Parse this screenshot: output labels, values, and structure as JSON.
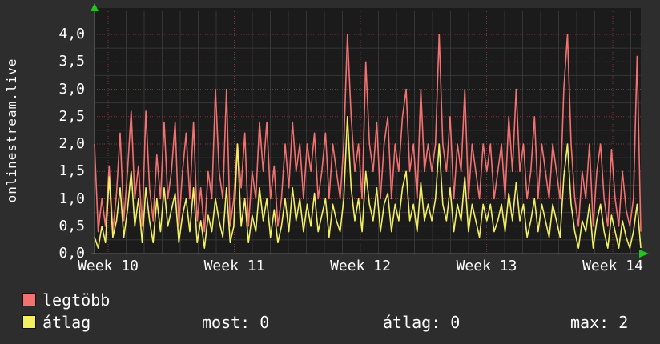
{
  "panel": {
    "bg": "#2d2d2d",
    "plot_bg": "#1b1b1b",
    "grid_major_color": "#7a3a3a",
    "grid_minor_color": "#363636",
    "axis_color": "#6a6a6a",
    "arrow_color": "#21c421",
    "text_color": "#ffffff"
  },
  "chart_data": {
    "type": "line",
    "title": "",
    "ylabel": "onlinestream.live",
    "xlabel": "",
    "ylim": [
      0,
      4.2
    ],
    "grid": true,
    "legend_position": "bottom-left",
    "y_ticks": [
      {
        "v": 0.0,
        "label": "0,0"
      },
      {
        "v": 0.5,
        "label": "0,5"
      },
      {
        "v": 1.0,
        "label": "1,0"
      },
      {
        "v": 1.5,
        "label": "1,5"
      },
      {
        "v": 2.0,
        "label": "2,0"
      },
      {
        "v": 2.5,
        "label": "2,5"
      },
      {
        "v": 3.0,
        "label": "3,0"
      },
      {
        "v": 3.5,
        "label": "3,5"
      },
      {
        "v": 4.0,
        "label": "4,0"
      }
    ],
    "x_tick_labels": [
      "Week 10",
      "Week 11",
      "Week 12",
      "Week 13",
      "Week 14"
    ],
    "series": [
      {
        "name": "legtöbb",
        "color": "#f47171",
        "values": [
          2.0,
          0.4,
          1.0,
          0.5,
          1.6,
          0.4,
          1.1,
          2.2,
          0.6,
          1.5,
          2.6,
          1.0,
          1.6,
          0.5,
          2.6,
          1.2,
          0.6,
          1.8,
          1.0,
          2.4,
          1.0,
          1.5,
          2.4,
          0.5,
          1.5,
          2.2,
          1.0,
          2.4,
          0.6,
          1.2,
          0.4,
          1.5,
          1.0,
          3.0,
          1.5,
          1.0,
          3.0,
          0.5,
          1.0,
          2.0,
          1.2,
          2.2,
          0.5,
          1.5,
          1.0,
          2.4,
          1.5,
          2.4,
          1.0,
          1.6,
          0.5,
          1.0,
          2.0,
          1.2,
          2.4,
          1.5,
          2.0,
          1.0,
          2.0,
          1.5,
          2.2,
          1.0,
          1.5,
          2.2,
          1.0,
          2.0,
          1.5,
          1.0,
          2.0,
          4.0,
          2.5,
          1.5,
          2.0,
          1.0,
          3.5,
          2.0,
          1.5,
          2.4,
          1.0,
          2.0,
          2.5,
          1.0,
          2.0,
          1.5,
          2.5,
          3.0,
          1.5,
          2.0,
          1.0,
          3.0,
          1.5,
          2.0,
          1.5,
          2.0,
          4.0,
          2.0,
          1.5,
          2.5,
          1.0,
          2.0,
          1.5,
          3.0,
          1.0,
          2.0,
          1.5,
          1.0,
          2.0,
          1.5,
          2.0,
          1.0,
          1.5,
          2.0,
          1.0,
          2.5,
          1.5,
          3.0,
          1.5,
          2.0,
          1.0,
          1.5,
          2.5,
          1.0,
          2.0,
          1.5,
          1.0,
          2.0,
          1.5,
          1.0,
          3.0,
          4.0,
          2.0,
          1.0,
          0.5,
          1.5,
          1.0,
          2.0,
          0.5,
          1.5,
          2.0,
          1.0,
          0.5,
          1.9,
          1.0,
          0.5,
          1.5,
          0.8,
          0.5,
          1.0,
          3.6,
          0.4
        ]
      },
      {
        "name": "átlag",
        "color": "#f3ef63",
        "values": [
          0.3,
          0.1,
          0.5,
          0.2,
          1.4,
          0.3,
          0.6,
          1.2,
          0.3,
          0.8,
          1.5,
          0.5,
          1.0,
          0.2,
          1.2,
          0.6,
          0.2,
          1.0,
          0.4,
          1.2,
          0.5,
          0.8,
          1.1,
          0.2,
          0.7,
          1.0,
          0.4,
          1.2,
          0.2,
          0.6,
          0.1,
          0.7,
          0.4,
          1.0,
          0.6,
          0.3,
          1.2,
          0.2,
          0.5,
          2.0,
          0.5,
          1.0,
          0.2,
          0.7,
          0.4,
          1.2,
          0.6,
          1.0,
          0.3,
          0.8,
          0.2,
          0.5,
          1.0,
          0.4,
          1.2,
          0.6,
          1.0,
          0.4,
          0.9,
          0.5,
          1.1,
          0.4,
          0.7,
          1.0,
          0.3,
          0.9,
          0.6,
          0.4,
          1.0,
          2.5,
          1.2,
          0.6,
          1.0,
          0.4,
          1.5,
          0.9,
          0.6,
          1.2,
          0.4,
          0.9,
          1.1,
          0.4,
          0.9,
          0.6,
          1.2,
          1.5,
          0.6,
          0.9,
          0.4,
          1.3,
          0.6,
          0.9,
          0.6,
          1.0,
          2.0,
          0.9,
          0.6,
          1.2,
          0.4,
          0.9,
          0.6,
          1.4,
          0.4,
          0.9,
          0.6,
          0.3,
          0.9,
          0.6,
          0.9,
          0.4,
          0.6,
          0.9,
          0.4,
          1.1,
          0.6,
          1.3,
          0.6,
          0.9,
          0.3,
          0.6,
          1.0,
          0.4,
          0.9,
          0.6,
          0.3,
          0.9,
          0.6,
          0.3,
          1.4,
          2.0,
          0.9,
          0.4,
          0.1,
          0.6,
          0.4,
          0.9,
          0.1,
          0.6,
          0.9,
          0.4,
          0.1,
          0.7,
          0.4,
          0.1,
          0.6,
          0.3,
          0.1,
          0.4,
          0.9,
          0.1
        ]
      }
    ],
    "legend": [
      {
        "label": "legtöbb",
        "color": "#f47171"
      },
      {
        "label": "átlag",
        "color": "#f3ef63"
      }
    ],
    "stats": [
      {
        "text": "most: 0"
      },
      {
        "text": "átlag: 0"
      },
      {
        "text": "max: 2"
      }
    ]
  }
}
